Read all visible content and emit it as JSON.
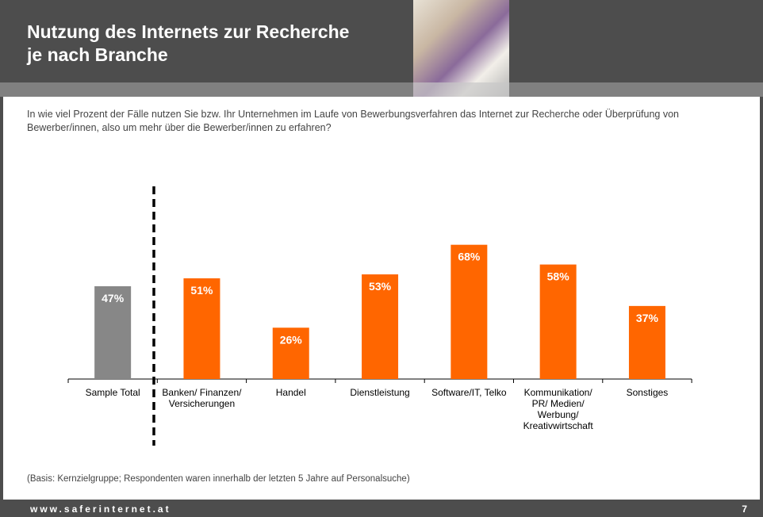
{
  "header": {
    "title_line1": "Nutzung des Internets zur Recherche",
    "title_line2": "je nach Branche"
  },
  "question": "In wie viel Prozent der Fälle nutzen Sie bzw. Ihr Unternehmen im Laufe von Bewerbungsverfahren das Internet zur Recherche oder Überprüfung von Bewerber/innen, also um mehr über die Bewerber/innen zu erfahren?",
  "note": "(Basis: Kernzielgruppe; Respondenten waren innerhalb der letzten 5 Jahre auf Personalsuche)",
  "footer": {
    "url": "www.saferinternet.at",
    "page": "7"
  },
  "colors": {
    "total": "#878787",
    "branch": "#ff6600"
  },
  "chart_data": {
    "type": "bar",
    "title": "Nutzung des Internets zur Recherche je nach Branche",
    "categories": [
      [
        "Sample Total"
      ],
      [
        "Banken/ Finanzen/",
        "Versicherungen"
      ],
      [
        "Handel"
      ],
      [
        "Dienstleistung"
      ],
      [
        "Software/IT, Telko"
      ],
      [
        "Kommunikation/",
        "PR/ Medien/",
        "Werbung/",
        "Kreativwirtschaft"
      ],
      [
        "Sonstiges"
      ]
    ],
    "values": [
      47,
      51,
      26,
      53,
      68,
      58,
      37
    ],
    "labels": [
      "47%",
      "51%",
      "26%",
      "53%",
      "68%",
      "58%",
      "37%"
    ],
    "unit": "%",
    "ylim": [
      0,
      100
    ],
    "grid": false,
    "legend": "none"
  }
}
